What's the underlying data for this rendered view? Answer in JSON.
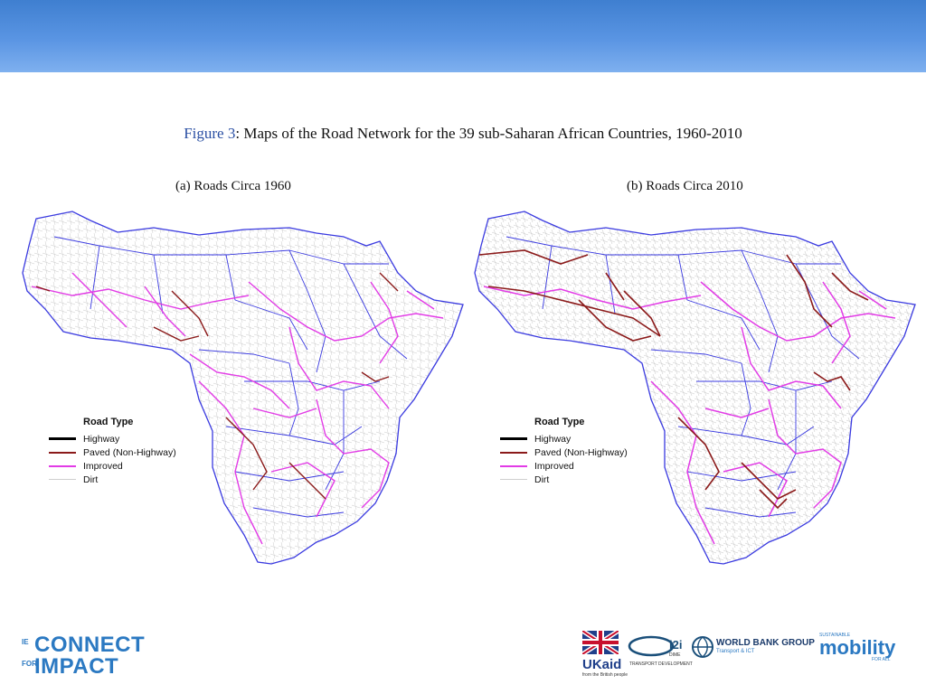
{
  "figure": {
    "label": "Figure 3",
    "title": ": Maps of the Road Network for the 39 sub-Saharan African Countries, 1960-2010"
  },
  "panels": [
    {
      "subtitle": "(a) Roads Circa 1960"
    },
    {
      "subtitle": "(b) Roads Circa 2010"
    }
  ],
  "legend": {
    "title": "Road Type",
    "items": [
      {
        "label": "Highway",
        "color": "#000000"
      },
      {
        "label": "Paved (Non-Highway)",
        "color": "#8b1a1a"
      },
      {
        "label": "Improved",
        "color": "#e23be6"
      },
      {
        "label": "Dirt",
        "color": "#cfcfcf"
      }
    ]
  },
  "colors": {
    "border": "#3a3ae0",
    "header_band": "#5a95e3"
  },
  "logos": {
    "connect": {
      "prefix_top": "IE",
      "word_top": "CONNECT",
      "prefix_bottom": "FOR",
      "word_bottom": "IMPACT"
    },
    "ukaid": {
      "text": "UKaid",
      "sub": "from the British people"
    },
    "i2i": {
      "text": "i2i",
      "sub1": "DIME",
      "sub2": "TRANSPORT DEVELOPMENT"
    },
    "worldbank": {
      "text": "WORLD BANK GROUP",
      "sub": "Transport & ICT"
    },
    "mobility": {
      "prefix": "SUSTAINABLE",
      "text": "mobility",
      "suffix": "FOR ALL"
    }
  }
}
